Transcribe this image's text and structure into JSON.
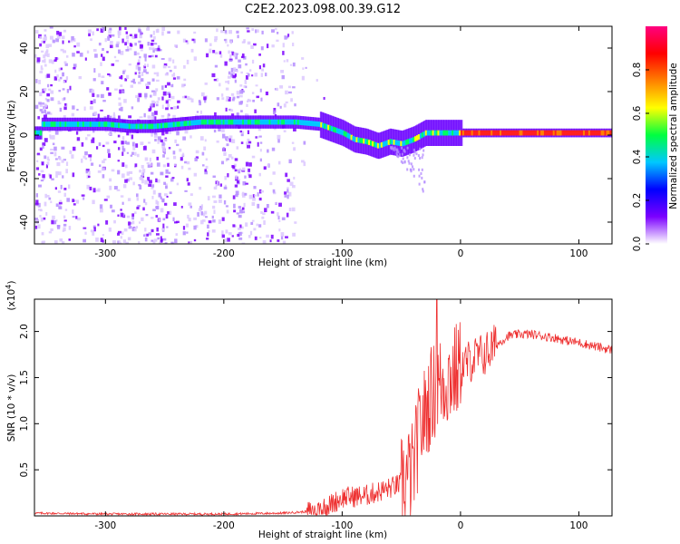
{
  "title": "C2E2.2023.098.00.39.G12",
  "chart_data": [
    {
      "type": "heatmap",
      "title": "C2E2.2023.098.00.39.G12",
      "xlabel": "Height of straight line (km)",
      "ylabel": "Frequency (Hz)",
      "xlim": [
        -360,
        128
      ],
      "ylim": [
        -50,
        50
      ],
      "xticks": [
        -300,
        -200,
        -100,
        0,
        100
      ],
      "xtick_labels": [
        "-300",
        "-200",
        "-100",
        "0",
        "100"
      ],
      "yticks": [
        -40,
        -20,
        0,
        20,
        40
      ],
      "ytick_labels": [
        "-40",
        "-20",
        "0",
        "20",
        "40"
      ],
      "colorbar": {
        "label": "Normalized spectral amplitude",
        "range": [
          0,
          1
        ],
        "ticks": [
          0.0,
          0.2,
          0.4,
          0.6,
          0.8
        ],
        "tick_labels": [
          "0.0",
          "0.2",
          "0.4",
          "0.6",
          "0.8"
        ],
        "colormap": "rainbow",
        "colors": [
          "#ffffff",
          "#7b00ff",
          "#0000ff",
          "#00c8ff",
          "#00ff40",
          "#ffff00",
          "#ff8000",
          "#ff0000",
          "#ff0080"
        ]
      },
      "ridge": {
        "x": [
          -355,
          -340,
          -320,
          -300,
          -280,
          -260,
          -240,
          -220,
          -200,
          -180,
          -160,
          -140,
          -120,
          -100,
          -90,
          -80,
          -70,
          -60,
          -50,
          -40,
          -30,
          -20,
          -10,
          0,
          20,
          40,
          60,
          80,
          100,
          120,
          128
        ],
        "y": [
          5,
          5,
          5,
          5,
          4,
          4,
          5,
          6,
          6,
          6,
          6,
          6,
          5,
          1,
          -2,
          -3,
          -5,
          -3,
          -4,
          -2,
          1,
          1,
          1,
          1,
          1,
          1,
          1,
          1,
          1,
          1,
          1
        ]
      },
      "noise_region": [
        -360,
        -140
      ],
      "grid": false
    },
    {
      "type": "line",
      "xlabel": "Height of straight line (km)",
      "ylabel": "SNR (10 * v/v)",
      "y_multiplier": "(x10^4)",
      "xlim": [
        -360,
        128
      ],
      "ylim": [
        0,
        2.35
      ],
      "xticks": [
        -300,
        -200,
        -100,
        0,
        100
      ],
      "xtick_labels": [
        "-300",
        "-200",
        "-100",
        "0",
        "100"
      ],
      "yticks": [
        0.5,
        1.0,
        1.5,
        2.0
      ],
      "ytick_labels": [
        "0.5",
        "1.0",
        "1.5",
        "2.0"
      ],
      "color": "#ee3030",
      "x": [
        -360,
        -300,
        -200,
        -150,
        -125,
        -110,
        -100,
        -80,
        -60,
        -50,
        -40,
        -35,
        -30,
        -25,
        -20,
        -15,
        -10,
        -5,
        0,
        10,
        20,
        30,
        40,
        50,
        60,
        70,
        80,
        90,
        100,
        110,
        120,
        128
      ],
      "y": [
        0.03,
        0.02,
        0.02,
        0.03,
        0.05,
        0.12,
        0.2,
        0.22,
        0.3,
        0.35,
        0.5,
        0.9,
        1.1,
        1.3,
        1.4,
        1.45,
        1.5,
        1.55,
        1.6,
        1.7,
        1.75,
        1.85,
        1.95,
        1.97,
        1.97,
        1.95,
        1.93,
        1.9,
        1.88,
        1.85,
        1.82,
        1.8
      ],
      "spike": {
        "x": -20,
        "y": 2.35
      },
      "grid": false
    }
  ]
}
